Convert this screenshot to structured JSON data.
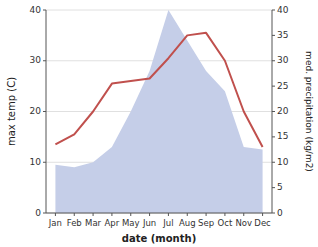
{
  "chart_data": {
    "type": "line",
    "categories": [
      "Jan",
      "Feb",
      "Mar",
      "Apr",
      "May",
      "Jun",
      "Jul",
      "Aug",
      "Sep",
      "Oct",
      "Nov",
      "Dec"
    ],
    "xlabel": "date (month)",
    "ylabel": "max temp (C)",
    "y2label": "med. precipitation (kg/m2)",
    "ylim": [
      0,
      40
    ],
    "yticks": [
      0,
      10,
      20,
      30,
      40
    ],
    "y2lim": [
      0,
      40
    ],
    "y2ticks": [
      0,
      5,
      10,
      15,
      20,
      25,
      30,
      35,
      40
    ],
    "grid": true,
    "series": [
      {
        "type": "area",
        "axis": "y2",
        "color": "#c5cee8",
        "values": [
          9.5,
          9.0,
          10.0,
          13.0,
          20.0,
          28.0,
          40.0,
          34.0,
          28.0,
          24.0,
          13.0,
          12.5
        ]
      },
      {
        "type": "line",
        "color": "#c0504d",
        "values": [
          13.5,
          15.5,
          20.0,
          25.5,
          26.0,
          26.5,
          30.5,
          35.0,
          35.5,
          30.0,
          20.0,
          13.0
        ]
      }
    ]
  }
}
